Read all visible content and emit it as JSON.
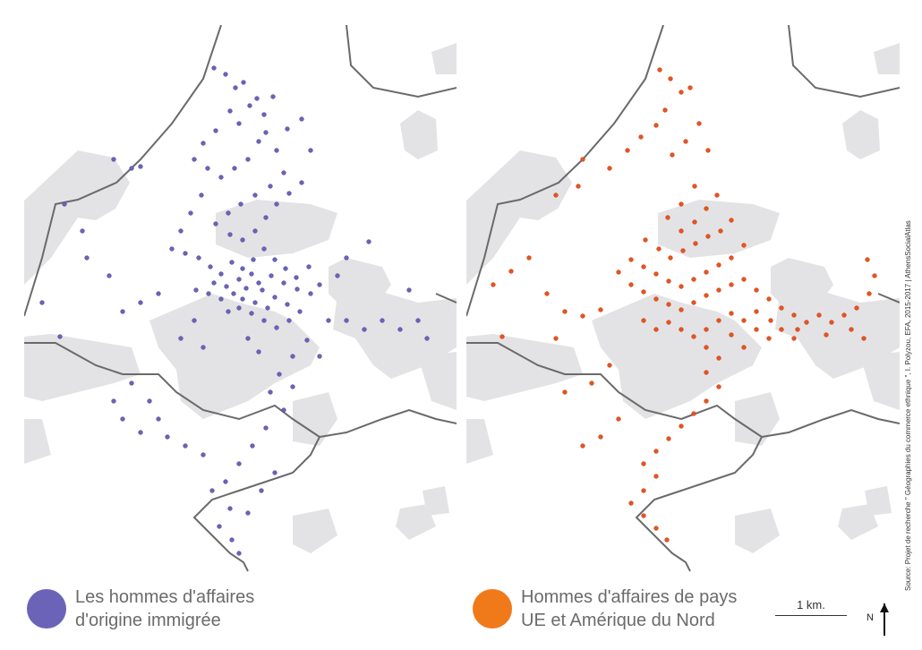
{
  "legend": {
    "left": {
      "line1": "Les hommes d'affaires",
      "line2": "d'origine immigrée",
      "color": "#6a63b8"
    },
    "right": {
      "line1": "Hommes d'affaires de pays",
      "line2": "UE et Amérique du Nord",
      "color": "#f07a1a"
    }
  },
  "scale": {
    "label": "1 km."
  },
  "north": {
    "label": "N"
  },
  "source": {
    "text": "Source: Projet de recherche \" Géographies du commerce ethnique \", I. Polyzou, EFA, 2015-2017 | AthensSocialAtlas"
  },
  "colors": {
    "land_gray": "#e3e3e5",
    "boundary": "#6a6a6a",
    "left_points": "#6a63b8",
    "right_points": "#e8531e"
  }
}
